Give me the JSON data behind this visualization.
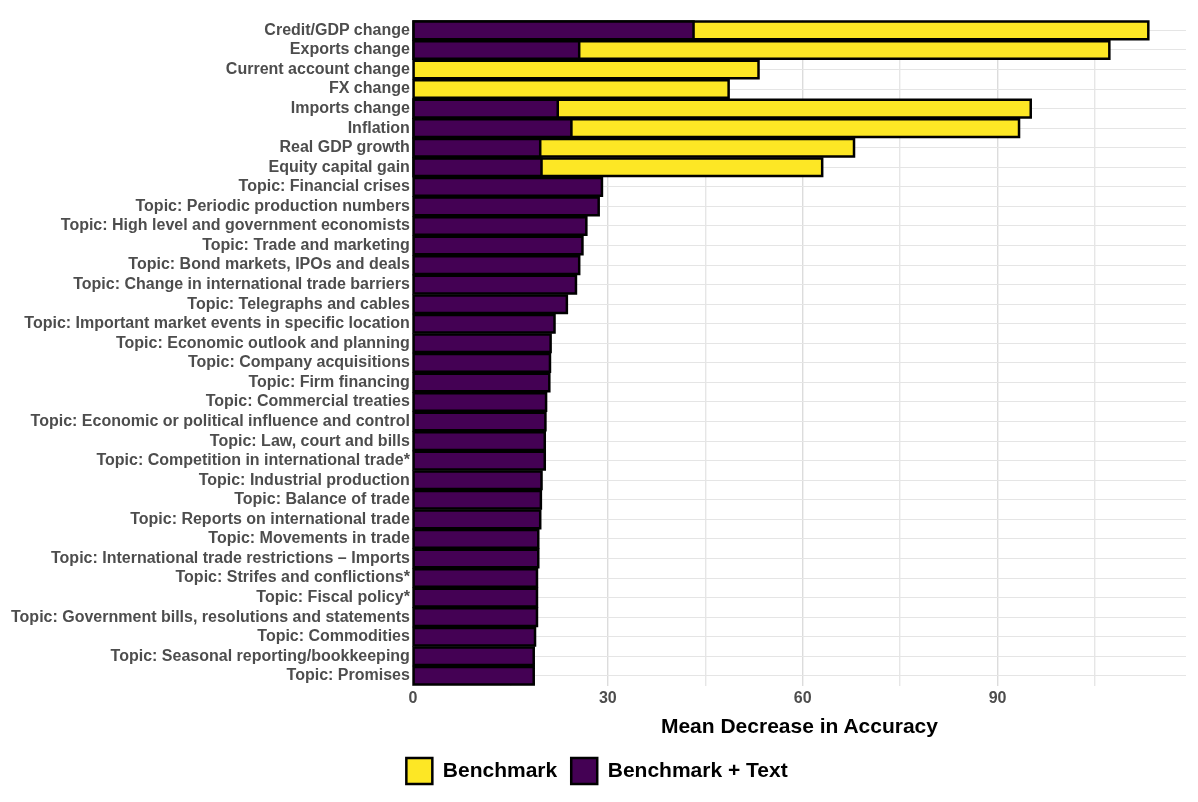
{
  "chart_data": {
    "type": "bar",
    "orientation": "horizontal",
    "xlabel": "Mean Decrease in Accuracy",
    "categories": [
      "Credit/GDP change",
      "Exports change",
      "Current account change",
      "FX change",
      "Imports change",
      "Inflation",
      "Real GDP growth",
      "Equity capital gain",
      "Topic: Financial crises",
      "Topic: Periodic production numbers",
      "Topic: High level and government economists",
      "Topic: Trade and marketing",
      "Topic: Bond markets, IPOs and deals",
      "Topic: Change in international trade barriers",
      "Topic: Telegraphs and cables",
      "Topic: Important market events in specific location",
      "Topic: Economic outlook and planning",
      "Topic: Company acquisitions",
      "Topic: Firm financing",
      "Topic: Commercial treaties",
      "Topic: Economic or political influence and control",
      "Topic: Law, court and bills",
      "Topic: Competition in international trade*",
      "Topic: Industrial production",
      "Topic: Balance of trade",
      "Topic: Reports on international trade",
      "Topic: Movements in trade",
      "Topic: International trade restrictions – Imports",
      "Topic: Strifes and conflictions*",
      "Topic: Fiscal policy*",
      "Topic: Government bills, resolutions and statements",
      "Topic: Commodities",
      "Topic: Seasonal reporting/bookkeeping",
      "Topic: Promises"
    ],
    "series": [
      {
        "name": "Benchmark",
        "color": "#fde725",
        "values": [
          113.2,
          107.2,
          53.2,
          48.6,
          95.1,
          93.3,
          67.9,
          63.0,
          null,
          null,
          null,
          null,
          null,
          null,
          null,
          null,
          null,
          null,
          null,
          null,
          null,
          null,
          null,
          null,
          null,
          null,
          null,
          null,
          null,
          null,
          null,
          null,
          null,
          null
        ]
      },
      {
        "name": "Benchmark + Text",
        "color": "#440154",
        "values": [
          43.2,
          25.6,
          null,
          null,
          22.3,
          24.4,
          19.6,
          19.8,
          29.1,
          28.6,
          26.7,
          26.1,
          25.6,
          25.1,
          23.7,
          21.8,
          21.2,
          21.1,
          21.0,
          20.5,
          20.4,
          20.3,
          20.3,
          19.8,
          19.7,
          19.6,
          19.3,
          19.3,
          19.1,
          19.1,
          19.1,
          18.8,
          18.6,
          18.6
        ]
      }
    ],
    "xlim": [
      0,
      119
    ],
    "xticks": [
      0,
      {
        "value": 15,
        "label": null
      },
      30,
      {
        "value": 45,
        "label": null
      },
      60,
      {
        "value": 75,
        "label": null
      },
      90,
      {
        "value": 105,
        "label": null
      }
    ],
    "grid": true,
    "legend": "bottom"
  }
}
